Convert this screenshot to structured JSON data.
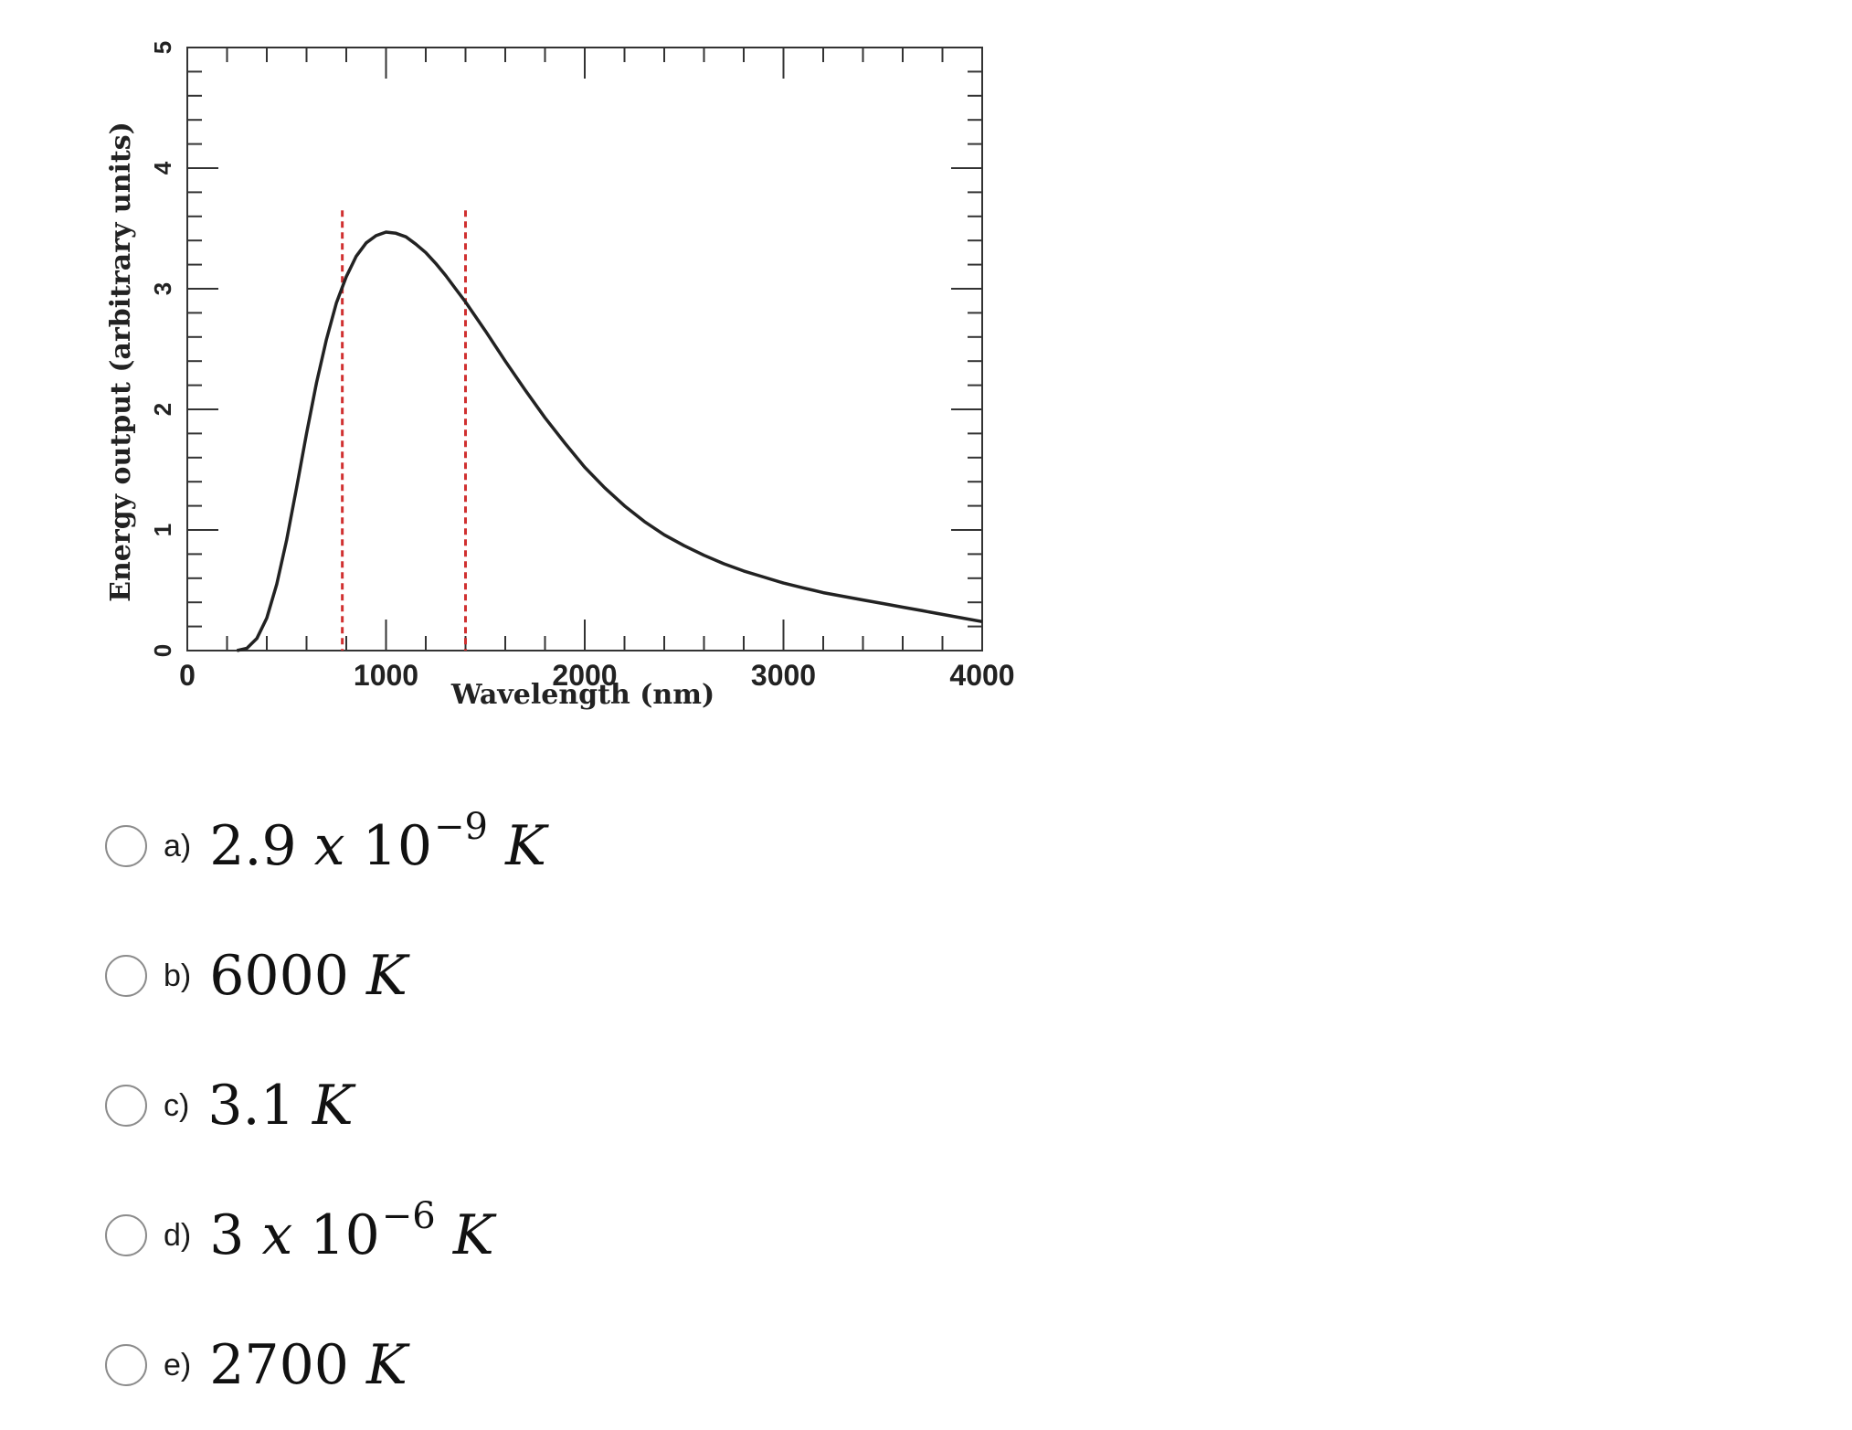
{
  "chart_data": {
    "type": "line",
    "xlabel": "Wavelength (nm)",
    "ylabel": "Energy output (arbitrary units)",
    "xlim": [
      0,
      4000
    ],
    "ylim": [
      0,
      5
    ],
    "x_ticks": [
      "0",
      "1000",
      "2000",
      "3000",
      "4000"
    ],
    "y_ticks": [
      "0",
      "1",
      "2",
      "3",
      "4",
      "5"
    ],
    "series": [
      {
        "color": "#222222",
        "x": [
          250,
          300,
          350,
          400,
          450,
          500,
          550,
          600,
          650,
          700,
          750,
          800,
          850,
          900,
          950,
          1000,
          1050,
          1100,
          1150,
          1200,
          1250,
          1300,
          1350,
          1400,
          1450,
          1500,
          1600,
          1700,
          1800,
          1900,
          2000,
          2100,
          2200,
          2300,
          2400,
          2500,
          2600,
          2700,
          2800,
          2900,
          3000,
          3100,
          3200,
          3300,
          3400,
          3500,
          3600,
          3700,
          3800,
          3900,
          4000
        ],
        "values": [
          0.0,
          0.02,
          0.1,
          0.27,
          0.55,
          0.92,
          1.35,
          1.8,
          2.22,
          2.58,
          2.88,
          3.1,
          3.27,
          3.38,
          3.44,
          3.47,
          3.46,
          3.43,
          3.37,
          3.3,
          3.21,
          3.11,
          3.0,
          2.89,
          2.77,
          2.65,
          2.4,
          2.16,
          1.93,
          1.72,
          1.52,
          1.35,
          1.2,
          1.07,
          0.96,
          0.87,
          0.79,
          0.72,
          0.66,
          0.61,
          0.56,
          0.52,
          0.48,
          0.45,
          0.42,
          0.39,
          0.36,
          0.33,
          0.3,
          0.27,
          0.24
        ]
      }
    ],
    "reference_lines": [
      {
        "x": 780,
        "color": "#d03030",
        "style": "dashed"
      },
      {
        "x": 1400,
        "color": "#d03030",
        "style": "dashed"
      }
    ],
    "grid": false
  },
  "options": [
    {
      "letter": "a)",
      "mantissa": "2.9",
      "times": "x",
      "base": "10",
      "exponent": "−9",
      "unit": "K"
    },
    {
      "letter": "b)",
      "mantissa": "6000",
      "times": "",
      "base": "",
      "exponent": "",
      "unit": "K"
    },
    {
      "letter": "c)",
      "mantissa": "3.1",
      "times": "",
      "base": "",
      "exponent": "",
      "unit": "K"
    },
    {
      "letter": "d)",
      "mantissa": "3",
      "times": "x",
      "base": "10",
      "exponent": "−6",
      "unit": "K"
    },
    {
      "letter": "e)",
      "mantissa": "2700",
      "times": "",
      "base": "",
      "exponent": "",
      "unit": "K"
    }
  ]
}
